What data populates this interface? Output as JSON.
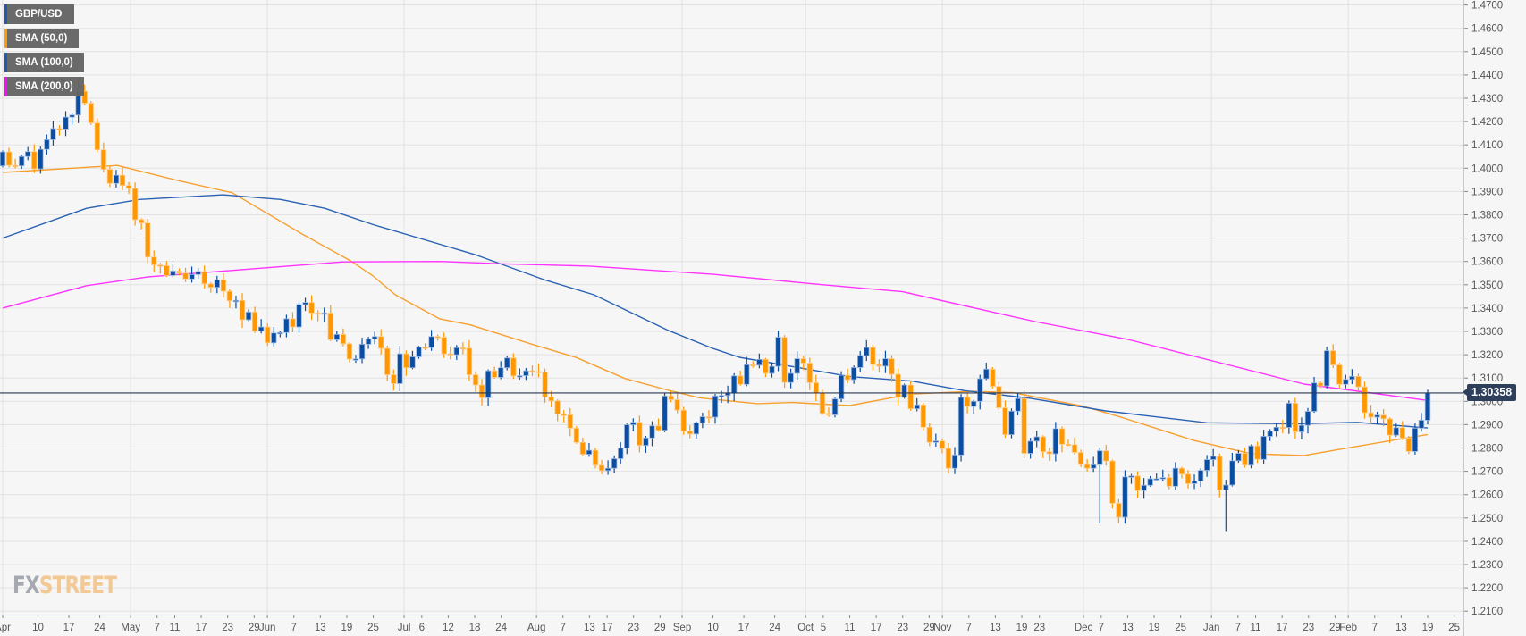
{
  "legend": [
    {
      "label": "GBP/USD",
      "color": "#1a56b0"
    },
    {
      "label": "SMA (50,0)",
      "color": "#ff9800"
    },
    {
      "label": "SMA (100,0)",
      "color": "#1a56b0"
    },
    {
      "label": "SMA (200,0)",
      "color": "#ff00ff"
    }
  ],
  "logo": {
    "part1": "FX",
    "part2": "STREET"
  },
  "colors": {
    "bull": "#0a4ea3",
    "bull_edge": "#9db8e0",
    "bear": "#ff9800",
    "bear_edge": "#ffcf92",
    "sma50": "#f7a030",
    "sma100": "#2a62b4",
    "sma200": "#ff33ff",
    "price_line": "#2a3a55",
    "grid": "#e2e2e2"
  },
  "chart_data": {
    "type": "candlestick",
    "title": "GBP/USD",
    "symbol": "GBP/USD",
    "x_range": [
      "2018-04-02",
      "2019-02-19"
    ],
    "ylim": [
      1.21,
      1.47
    ],
    "grid": true,
    "legend_position": "top-left",
    "first_open": 1.401,
    "close": [
      1.407,
      1.4012,
      1.401,
      1.405,
      1.4071,
      1.3997,
      1.4081,
      1.4122,
      1.417,
      1.4168,
      1.4219,
      1.4228,
      1.433,
      1.4279,
      1.4194,
      1.4079,
      1.3995,
      1.3935,
      1.397,
      1.3926,
      1.3913,
      1.3779,
      1.3765,
      1.3619,
      1.3585,
      1.3582,
      1.354,
      1.3559,
      1.355,
      1.3525,
      1.3544,
      1.3557,
      1.3504,
      1.3489,
      1.3521,
      1.3472,
      1.3431,
      1.3433,
      1.335,
      1.3383,
      1.3302,
      1.3319,
      1.3251,
      1.3293,
      1.3295,
      1.3354,
      1.3319,
      1.3415,
      1.3424,
      1.3379,
      1.3376,
      1.3379,
      1.3264,
      1.3287,
      1.3247,
      1.3181,
      1.3182,
      1.3245,
      1.3268,
      1.3278,
      1.3227,
      1.3114,
      1.3076,
      1.3204,
      1.3144,
      1.3191,
      1.3232,
      1.323,
      1.3278,
      1.3275,
      1.3204,
      1.32,
      1.323,
      1.3228,
      1.3114,
      1.307,
      1.3015,
      1.3131,
      1.3103,
      1.3144,
      1.3186,
      1.3109,
      1.311,
      1.3131,
      1.3128,
      1.3126,
      1.3019,
      1.3002,
      1.2945,
      1.2942,
      1.2885,
      1.2824,
      1.2773,
      1.279,
      1.2726,
      1.2703,
      1.2713,
      1.2754,
      1.2799,
      1.2899,
      1.291,
      1.2811,
      1.2843,
      1.2895,
      1.2876,
      1.3023,
      1.3007,
      1.2962,
      1.2872,
      1.286,
      1.2908,
      1.2934,
      1.2932,
      1.3023,
      1.3025,
      1.3036,
      1.3109,
      1.3073,
      1.3157,
      1.3155,
      1.318,
      1.312,
      1.315,
      1.3275,
      1.3081,
      1.312,
      1.3183,
      1.3164,
      1.308,
      1.3036,
      1.2948,
      1.2942,
      1.301,
      1.3112,
      1.3093,
      1.3145,
      1.3196,
      1.3231,
      1.3158,
      1.3151,
      1.3183,
      1.3116,
      1.3017,
      1.307,
      1.2968,
      1.2985,
      1.2889,
      1.2824,
      1.283,
      1.2798,
      1.2713,
      1.277,
      1.3017,
      1.2978,
      1.3,
      1.3097,
      1.3138,
      1.3064,
      1.2972,
      1.2857,
      1.2958,
      1.3012,
      1.2777,
      1.2829,
      1.2848,
      1.2784,
      1.2775,
      1.2883,
      1.2816,
      1.2814,
      1.2781,
      1.2729,
      1.2713,
      1.2728,
      1.2788,
      1.2744,
      1.2563,
      1.2503,
      1.2676,
      1.268,
      1.2617,
      1.264,
      1.2668,
      1.2668,
      1.2673,
      1.2636,
      1.2713,
      1.2688,
      1.2647,
      1.2658,
      1.2704,
      1.275,
      1.2764,
      1.262,
      1.2641,
      1.2745,
      1.2777,
      1.2726,
      1.2809,
      1.2751,
      1.285,
      1.2872,
      1.2889,
      1.2888,
      1.2992,
      1.2869,
      1.2897,
      1.2957,
      1.3079,
      1.3066,
      1.3217,
      1.3156,
      1.3073,
      1.3094,
      1.3107,
      1.3062,
      1.2951,
      1.2932,
      1.2941,
      1.2925,
      1.2855,
      1.2887,
      1.2843,
      1.2785,
      1.2885,
      1.2919,
      1.30358
    ],
    "wick_overrides": [
      {
        "i": 12,
        "high": 1.4376
      },
      {
        "i": 174,
        "low": 1.2477
      },
      {
        "i": 194,
        "low": 1.244
      },
      {
        "i": 226,
        "high": 1.305
      }
    ],
    "series": [
      {
        "name": "SMA (50,0)",
        "color_key": "sma50",
        "points": [
          [
            "2018-04-02",
            1.3982
          ],
          [
            "2018-04-28",
            1.4012
          ],
          [
            "2018-05-12",
            1.3946
          ],
          [
            "2018-05-24",
            1.3895
          ],
          [
            "2018-06-09",
            1.3716
          ],
          [
            "2018-06-20",
            1.3601
          ],
          [
            "2018-06-25",
            1.3537
          ],
          [
            "2018-06-30",
            1.3457
          ],
          [
            "2018-07-10",
            1.3354
          ],
          [
            "2018-07-17",
            1.3328
          ],
          [
            "2018-08-01",
            1.3239
          ],
          [
            "2018-08-10",
            1.3188
          ],
          [
            "2018-08-21",
            1.3098
          ],
          [
            "2018-08-31",
            1.3047
          ],
          [
            "2018-09-07",
            1.3015
          ],
          [
            "2018-09-20",
            1.299
          ],
          [
            "2018-09-28",
            1.2995
          ],
          [
            "2018-10-11",
            1.2982
          ],
          [
            "2018-10-25",
            1.3031
          ],
          [
            "2018-11-08",
            1.3043
          ],
          [
            "2018-11-17",
            1.3037
          ],
          [
            "2018-12-03",
            1.2979
          ],
          [
            "2018-12-11",
            1.2935
          ],
          [
            "2018-12-16",
            1.2905
          ],
          [
            "2018-12-28",
            1.2832
          ],
          [
            "2019-01-10",
            1.2775
          ],
          [
            "2019-01-22",
            1.2768
          ],
          [
            "2019-02-03",
            1.2807
          ],
          [
            "2019-02-13",
            1.2839
          ],
          [
            "2019-02-19",
            1.2858
          ]
        ]
      },
      {
        "name": "SMA (100,0)",
        "color_key": "sma100",
        "points": [
          [
            "2018-04-02",
            1.37
          ],
          [
            "2018-04-21",
            1.3828
          ],
          [
            "2018-05-03",
            1.3866
          ],
          [
            "2018-05-22",
            1.3886
          ],
          [
            "2018-06-04",
            1.3866
          ],
          [
            "2018-06-14",
            1.3828
          ],
          [
            "2018-06-25",
            1.3758
          ],
          [
            "2018-07-18",
            1.363
          ],
          [
            "2018-08-03",
            1.352
          ],
          [
            "2018-08-14",
            1.3457
          ],
          [
            "2018-08-31",
            1.3303
          ],
          [
            "2018-09-10",
            1.3227
          ],
          [
            "2018-09-16",
            1.3189
          ],
          [
            "2018-10-11",
            1.3106
          ],
          [
            "2018-10-25",
            1.3087
          ],
          [
            "2018-11-06",
            1.3046
          ],
          [
            "2018-11-21",
            1.3013
          ],
          [
            "2018-12-08",
            1.2959
          ],
          [
            "2018-12-31",
            1.2908
          ],
          [
            "2019-01-20",
            1.2904
          ],
          [
            "2019-02-03",
            1.291
          ],
          [
            "2019-02-19",
            1.2886
          ]
        ]
      },
      {
        "name": "SMA (200,0)",
        "color_key": "sma200",
        "points": [
          [
            "2018-04-02",
            1.34
          ],
          [
            "2018-04-21",
            1.3496
          ],
          [
            "2018-05-05",
            1.3534
          ],
          [
            "2018-06-01",
            1.3573
          ],
          [
            "2018-06-18",
            1.3598
          ],
          [
            "2018-07-10",
            1.36
          ],
          [
            "2018-07-24",
            1.359
          ],
          [
            "2018-08-13",
            1.358
          ],
          [
            "2018-09-10",
            1.3545
          ],
          [
            "2018-10-05",
            1.35
          ],
          [
            "2018-10-23",
            1.347
          ],
          [
            "2018-11-13",
            1.338
          ],
          [
            "2018-11-22",
            1.3342
          ],
          [
            "2018-12-13",
            1.3266
          ],
          [
            "2019-01-22",
            1.3074
          ],
          [
            "2019-02-19",
            1.3004
          ]
        ]
      }
    ],
    "last_price": 1.30358,
    "last_price_label": "1.30358",
    "y_ticks": [
      "1.2100",
      "1.2200",
      "1.2300",
      "1.2400",
      "1.2500",
      "1.2600",
      "1.2700",
      "1.2800",
      "1.2900",
      "1.3000",
      "1.3100",
      "1.3200",
      "1.3300",
      "1.3400",
      "1.3500",
      "1.3600",
      "1.3700",
      "1.3800",
      "1.3900",
      "1.4000",
      "1.4100",
      "1.4200",
      "1.4300",
      "1.4400",
      "1.4500",
      "1.4600",
      "1.4700"
    ],
    "x_ticks": [
      {
        "label": "Apr",
        "date": "2018-04-02"
      },
      {
        "label": "10",
        "date": "2018-04-10"
      },
      {
        "label": "17",
        "date": "2018-04-17"
      },
      {
        "label": "24",
        "date": "2018-04-24"
      },
      {
        "label": "May",
        "date": "2018-05-01"
      },
      {
        "label": "7",
        "date": "2018-05-07"
      },
      {
        "label": "11",
        "date": "2018-05-11"
      },
      {
        "label": "17",
        "date": "2018-05-17"
      },
      {
        "label": "23",
        "date": "2018-05-23"
      },
      {
        "label": "29",
        "date": "2018-05-29"
      },
      {
        "label": "Jun",
        "date": "2018-06-01"
      },
      {
        "label": "7",
        "date": "2018-06-07"
      },
      {
        "label": "13",
        "date": "2018-06-13"
      },
      {
        "label": "19",
        "date": "2018-06-19"
      },
      {
        "label": "25",
        "date": "2018-06-25"
      },
      {
        "label": "Jul",
        "date": "2018-07-02"
      },
      {
        "label": "6",
        "date": "2018-07-06"
      },
      {
        "label": "12",
        "date": "2018-07-12"
      },
      {
        "label": "18",
        "date": "2018-07-18"
      },
      {
        "label": "24",
        "date": "2018-07-24"
      },
      {
        "label": "Aug",
        "date": "2018-08-01"
      },
      {
        "label": "7",
        "date": "2018-08-07"
      },
      {
        "label": "13",
        "date": "2018-08-13"
      },
      {
        "label": "17",
        "date": "2018-08-17"
      },
      {
        "label": "23",
        "date": "2018-08-23"
      },
      {
        "label": "29",
        "date": "2018-08-29"
      },
      {
        "label": "Sep",
        "date": "2018-09-03"
      },
      {
        "label": "10",
        "date": "2018-09-10"
      },
      {
        "label": "17",
        "date": "2018-09-17"
      },
      {
        "label": "24",
        "date": "2018-09-24"
      },
      {
        "label": "Oct",
        "date": "2018-10-01"
      },
      {
        "label": "5",
        "date": "2018-10-05"
      },
      {
        "label": "11",
        "date": "2018-10-11"
      },
      {
        "label": "17",
        "date": "2018-10-17"
      },
      {
        "label": "23",
        "date": "2018-10-23"
      },
      {
        "label": "29",
        "date": "2018-10-29"
      },
      {
        "label": "Nov",
        "date": "2018-11-01"
      },
      {
        "label": "7",
        "date": "2018-11-07"
      },
      {
        "label": "13",
        "date": "2018-11-13"
      },
      {
        "label": "19",
        "date": "2018-11-19"
      },
      {
        "label": "23",
        "date": "2018-11-23"
      },
      {
        "label": "Dec",
        "date": "2018-12-03"
      },
      {
        "label": "7",
        "date": "2018-12-07"
      },
      {
        "label": "13",
        "date": "2018-12-13"
      },
      {
        "label": "19",
        "date": "2018-12-19"
      },
      {
        "label": "25",
        "date": "2018-12-25"
      },
      {
        "label": "Jan",
        "date": "2019-01-01"
      },
      {
        "label": "7",
        "date": "2019-01-07"
      },
      {
        "label": "11",
        "date": "2019-01-11"
      },
      {
        "label": "17",
        "date": "2019-01-17"
      },
      {
        "label": "23",
        "date": "2019-01-23"
      },
      {
        "label": "29",
        "date": "2019-01-29"
      },
      {
        "label": "Feb",
        "date": "2019-02-01"
      },
      {
        "label": "7",
        "date": "2019-02-07"
      },
      {
        "label": "13",
        "date": "2019-02-13"
      },
      {
        "label": "19",
        "date": "2019-02-19"
      },
      {
        "label": "25",
        "date": "2019-02-25"
      }
    ]
  }
}
